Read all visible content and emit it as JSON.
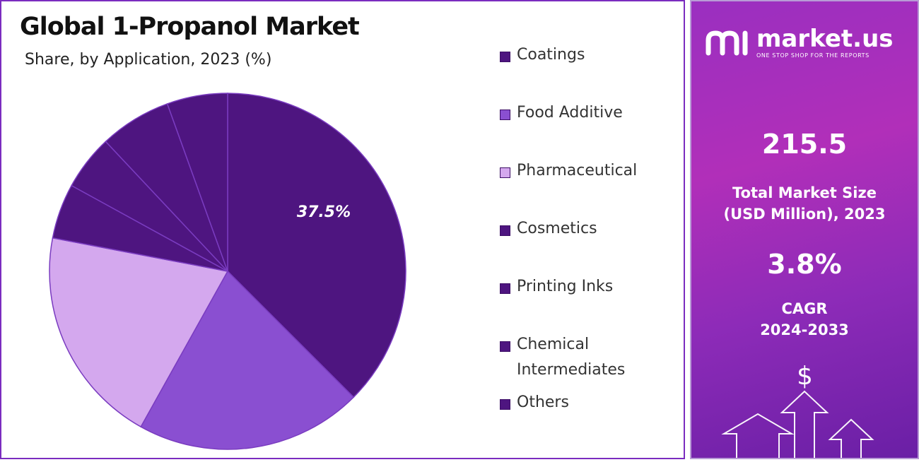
{
  "chart_data": {
    "type": "pie",
    "title": "Global 1-Propanol Market",
    "subtitle": "Share, by Application, 2023 (%)",
    "slices": [
      {
        "label": "Coatings",
        "value": 37.5,
        "color": "#4e1580",
        "data_label": "37.5%"
      },
      {
        "label": "Food Additive",
        "value": 20.6,
        "color": "#8a4fd1",
        "data_label": ""
      },
      {
        "label": "Pharmaceutical",
        "value": 19.9,
        "color": "#d4a8ee",
        "data_label": ""
      },
      {
        "label": "Cosmetics",
        "value": 5.0,
        "color": "#4e1580",
        "data_label": ""
      },
      {
        "label": "Printing Inks",
        "value": 5.0,
        "color": "#4e1580",
        "data_label": ""
      },
      {
        "label": "Chemical Intermediates",
        "value": 6.5,
        "color": "#4e1580",
        "data_label": ""
      },
      {
        "label": "Others",
        "value": 5.5,
        "color": "#4e1580",
        "data_label": ""
      }
    ],
    "legend_placement": "right"
  },
  "legend": [
    {
      "lines": [
        "Coatings"
      ],
      "color": "#4e1580"
    },
    {
      "lines": [
        "Food Additive"
      ],
      "color": "#8a4fd1"
    },
    {
      "lines": [
        "Pharmaceutical"
      ],
      "color": "#d4a8ee"
    },
    {
      "lines": [
        "Cosmetics"
      ],
      "color": "#4e1580"
    },
    {
      "lines": [
        "Printing Inks"
      ],
      "color": "#4e1580"
    },
    {
      "lines": [
        "Chemical",
        "Intermediates"
      ],
      "color": "#4e1580"
    },
    {
      "lines": [
        "Others"
      ],
      "color": "#4e1580"
    }
  ],
  "brand": {
    "name": "market.us",
    "tagline": "ONE STOP SHOP FOR THE REPORTS",
    "icon": "market-us-logo-icon"
  },
  "stats": {
    "market_size_value": "215.5",
    "market_size_label_1": "Total Market Size",
    "market_size_label_2": "(USD Million), 2023",
    "cagr_value": "3.8%",
    "cagr_label_1": "CAGR",
    "cagr_label_2": "2024-2033"
  },
  "decor": {
    "dollar": "$",
    "arrow_icon": "up-arrow-icon"
  },
  "colors": {
    "accent": "#7b2cbf",
    "panel_gradient": [
      "#9a2fc0",
      "#b12fb9",
      "#6a1fa5"
    ]
  }
}
